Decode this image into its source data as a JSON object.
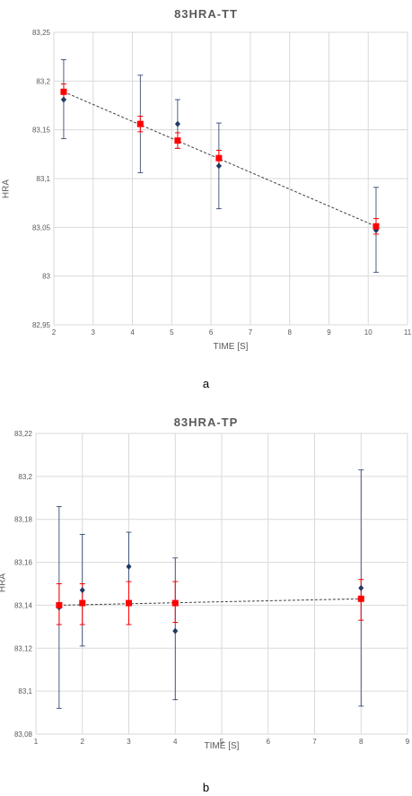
{
  "figure_labels": [
    "a",
    "b"
  ],
  "chart_data": [
    {
      "type": "scatter",
      "title": "83HRA-TT",
      "xlabel": "TIME [S]",
      "ylabel": "HRA",
      "xlim": [
        2,
        11
      ],
      "ylim": [
        82.95,
        83.25
      ],
      "x_ticks": [
        "2",
        "3",
        "4",
        "5",
        "6",
        "7",
        "8",
        "9",
        "10",
        "11"
      ],
      "y_ticks": [
        "82,95",
        "83",
        "83,05",
        "83,1",
        "83,15",
        "83,2",
        "83,25"
      ],
      "grid": true,
      "series": [
        {
          "marker": "diamond",
          "color": "#1f3864",
          "x": [
            2.25,
            4.2,
            5.15,
            6.2,
            10.2
          ],
          "y": [
            83.181,
            83.156,
            83.156,
            83.113,
            83.047
          ],
          "err_low": [
            83.141,
            83.106,
            83.131,
            83.069,
            83.004
          ],
          "err_high": [
            83.222,
            83.206,
            83.181,
            83.157,
            83.091
          ]
        },
        {
          "marker": "square",
          "color": "#ff0000",
          "x": [
            2.25,
            4.2,
            5.15,
            6.2,
            10.2
          ],
          "y": [
            83.189,
            83.156,
            83.139,
            83.121,
            83.051
          ],
          "err_low": [
            83.181,
            83.148,
            83.131,
            83.113,
            83.043
          ],
          "err_high": [
            83.197,
            83.164,
            83.147,
            83.129,
            83.059
          ]
        }
      ],
      "trendline": {
        "x": [
          2.25,
          10.2
        ],
        "y": [
          83.189,
          83.051
        ],
        "style": "dashed"
      }
    },
    {
      "type": "scatter",
      "title": "83HRA-TP",
      "xlabel": "TIME [S]",
      "ylabel": "HRA",
      "xlim": [
        1,
        9
      ],
      "ylim": [
        83.08,
        83.22
      ],
      "x_ticks": [
        "1",
        "2",
        "3",
        "4",
        "5",
        "6",
        "7",
        "8",
        "9"
      ],
      "y_ticks": [
        "83,08",
        "83,1",
        "83,12",
        "83,14",
        "83,16",
        "83,18",
        "83,2",
        "83,22"
      ],
      "grid": true,
      "series": [
        {
          "marker": "diamond",
          "color": "#1f3864",
          "x": [
            1.5,
            2.0,
            3.0,
            4.0,
            8.0
          ],
          "y": [
            83.139,
            83.147,
            83.158,
            83.128,
            83.148
          ],
          "err_low": [
            83.092,
            83.121,
            83.141,
            83.096,
            83.093
          ],
          "err_high": [
            83.186,
            83.173,
            83.174,
            83.162,
            83.203
          ]
        },
        {
          "marker": "square",
          "color": "#ff0000",
          "x": [
            1.5,
            2.0,
            3.0,
            4.0,
            8.0
          ],
          "y": [
            83.14,
            83.141,
            83.141,
            83.141,
            83.143
          ],
          "err_low": [
            83.131,
            83.131,
            83.131,
            83.132,
            83.133
          ],
          "err_high": [
            83.15,
            83.15,
            83.151,
            83.151,
            83.152
          ]
        }
      ],
      "trendline": {
        "x": [
          1.5,
          8.0
        ],
        "y": [
          83.14,
          83.143
        ],
        "style": "dashed"
      }
    }
  ]
}
